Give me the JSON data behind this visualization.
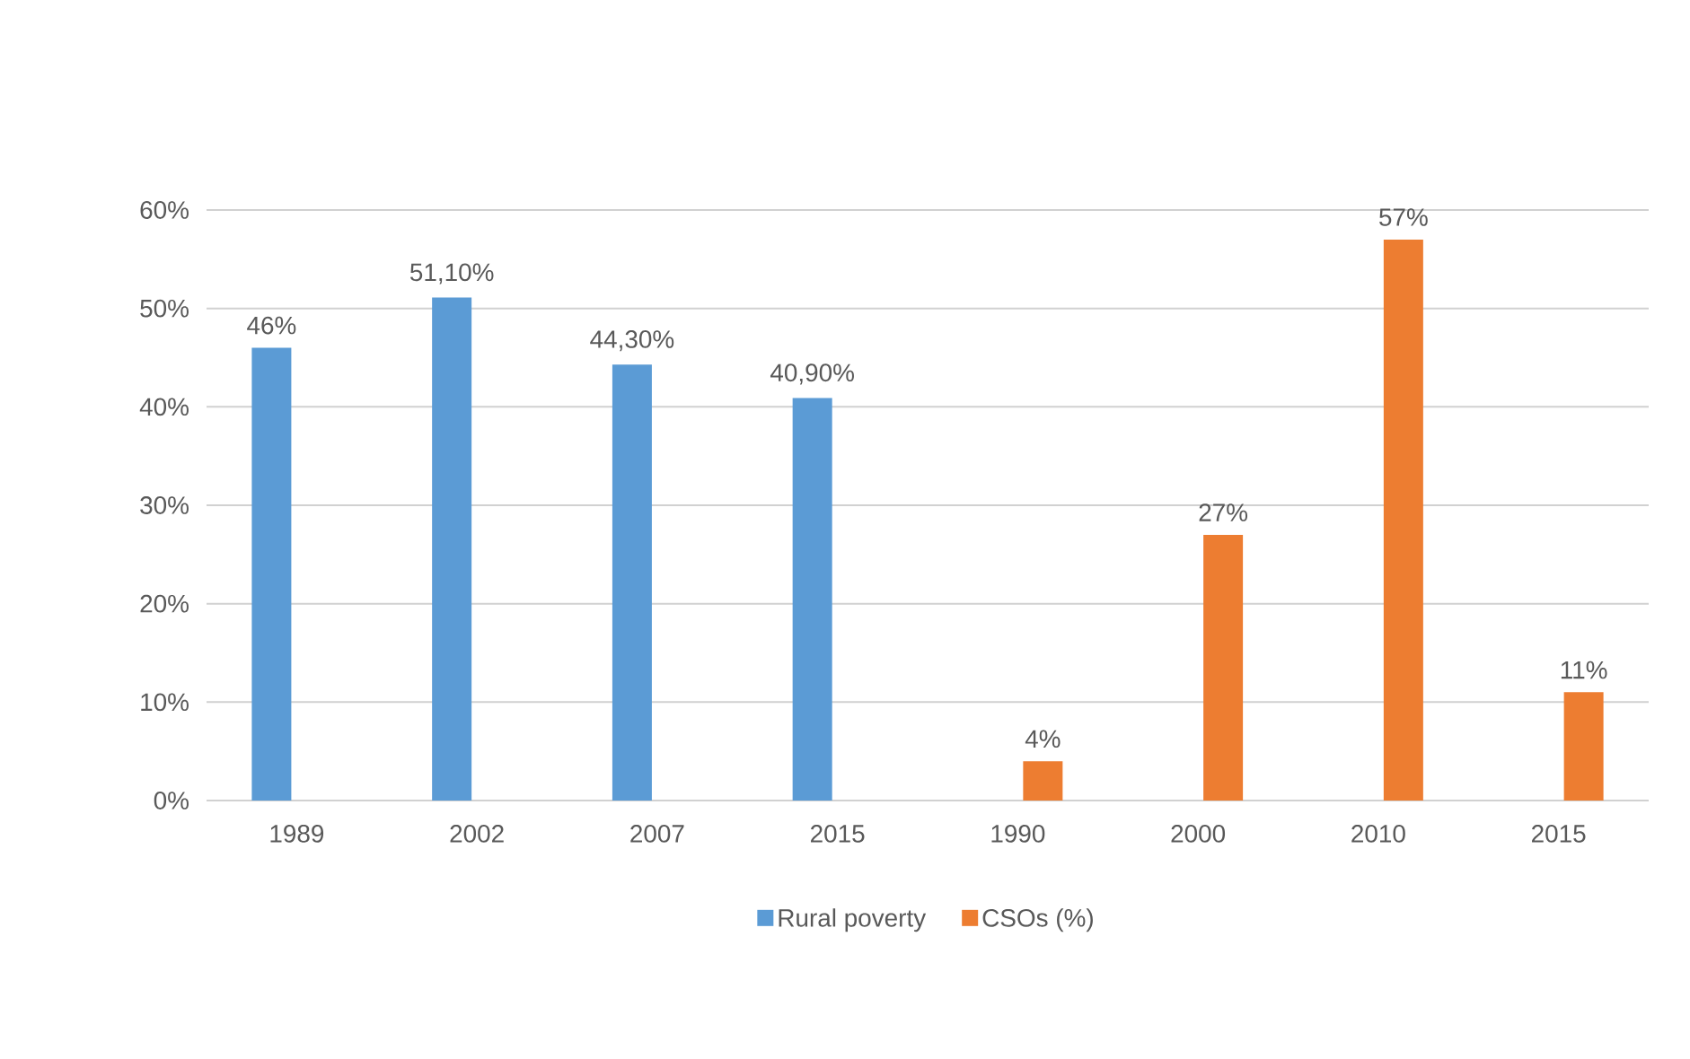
{
  "chart_data": {
    "type": "bar",
    "categories": [
      "1989",
      "2002",
      "2007",
      "2015",
      "1990",
      "2000",
      "2010",
      "2015"
    ],
    "series": [
      {
        "name": "Rural poverty",
        "color": "#5b9bd5",
        "values": [
          46,
          51.1,
          44.3,
          40.9,
          null,
          null,
          null,
          null
        ],
        "value_labels": [
          "46%",
          "51,10%",
          "44,30%",
          "40,90%",
          null,
          null,
          null,
          null
        ]
      },
      {
        "name": "CSOs (%)",
        "color": "#ed7d31",
        "values": [
          null,
          null,
          null,
          null,
          4,
          27,
          57,
          11
        ],
        "value_labels": [
          null,
          null,
          null,
          null,
          "4%",
          "27%",
          "57%",
          "11%"
        ]
      }
    ],
    "ylim": [
      0,
      60
    ],
    "yticks": [
      {
        "value": 0,
        "label": "0%"
      },
      {
        "value": 10,
        "label": "10%"
      },
      {
        "value": 20,
        "label": "20%"
      },
      {
        "value": 30,
        "label": "30%"
      },
      {
        "value": 40,
        "label": "40%"
      },
      {
        "value": 50,
        "label": "50%"
      },
      {
        "value": 60,
        "label": "60%"
      }
    ],
    "grid": "y",
    "legend": "bottom"
  }
}
